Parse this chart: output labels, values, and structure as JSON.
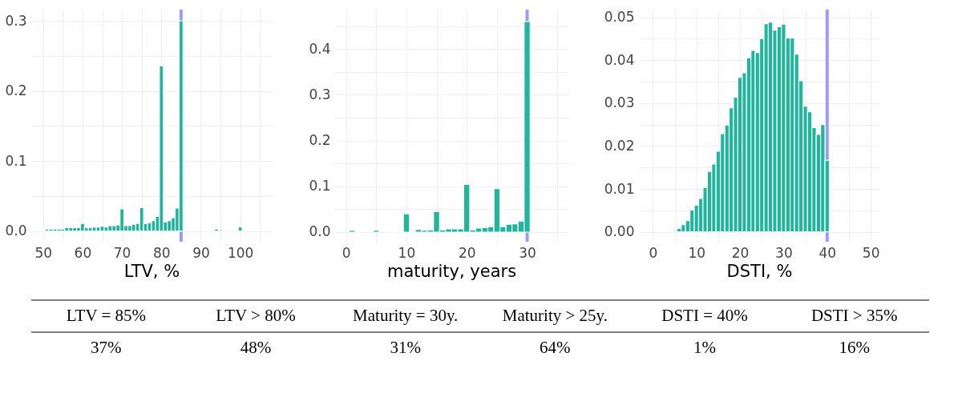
{
  "chart_data": [
    {
      "type": "histogram",
      "xlabel": "LTV, %",
      "color": "#1fb69c",
      "bins": [
        50.5,
        51.5,
        52.5,
        53.5,
        54.5,
        55.5,
        56.5,
        57.5,
        58.5,
        59.5,
        60.5,
        61.5,
        62.5,
        63.5,
        64.5,
        65.5,
        66.5,
        67.5,
        68.5,
        69.5,
        70.5,
        71.5,
        72.5,
        73.5,
        74.5,
        75.5,
        76.5,
        77.5,
        78.5,
        79.5,
        80.5,
        81.5,
        82.5,
        83.5,
        84.5,
        85.5,
        86.5,
        87.5,
        88.5,
        89.5,
        90.5,
        91.5,
        92.5,
        93.5,
        94.5,
        95.5,
        96.5,
        97.5,
        98.5,
        99.5,
        100.5
      ],
      "values": [
        0.003,
        0.003,
        0.003,
        0.003,
        0.003,
        0.005,
        0.005,
        0.005,
        0.005,
        0.011,
        0.005,
        0.005,
        0.006,
        0.006,
        0.007,
        0.006,
        0.008,
        0.008,
        0.009,
        0.032,
        0.008,
        0.008,
        0.01,
        0.011,
        0.034,
        0.011,
        0.012,
        0.015,
        0.021,
        0.236,
        0.013,
        0.015,
        0.019,
        0.033,
        0.3,
        0,
        0,
        0,
        0,
        0,
        0,
        0.001,
        0.001,
        0.003,
        0.002,
        0.001,
        0.001,
        0.001,
        0,
        0.006
      ],
      "xlim": [
        47,
        108
      ],
      "xticks": [
        50,
        {
          "value": 55,
          "label": null
        },
        60,
        {
          "value": 65,
          "label": null
        },
        70,
        {
          "value": 75,
          "label": null
        },
        80,
        {
          "value": 85,
          "label": null
        },
        90,
        {
          "value": 95,
          "label": null
        },
        100,
        {
          "value": 105,
          "label": null
        }
      ],
      "ylim": [
        -0.015,
        0.316
      ],
      "yticks": [
        {
          "value": 0,
          "label": "0.0"
        },
        {
          "value": 0.05,
          "label": null
        },
        {
          "value": 0.1,
          "label": "0.1"
        },
        {
          "value": 0.15,
          "label": null
        },
        {
          "value": 0.2,
          "label": "0.2"
        },
        {
          "value": 0.25,
          "label": null
        },
        {
          "value": 0.3,
          "label": "0.3"
        }
      ],
      "grid": true,
      "ref_lines": [
        {
          "axis": "x",
          "value": 85,
          "label": null,
          "color": "#9c9cf7"
        }
      ]
    },
    {
      "type": "histogram",
      "xlabel": "maturity, years",
      "color": "#1fb69c",
      "bins": [
        0.5,
        1.5,
        2.5,
        3.5,
        4.5,
        5.5,
        6.5,
        7.5,
        8.5,
        9.5,
        10.5,
        11.5,
        12.5,
        13.5,
        14.5,
        15.5,
        16.5,
        17.5,
        18.5,
        19.5,
        20.5,
        21.5,
        22.5,
        23.5,
        24.5,
        25.5,
        26.5,
        27.5,
        28.5,
        29.5,
        30.5
      ],
      "values": [
        0.004,
        0.002,
        0,
        0,
        0.004,
        0,
        0.002,
        0.002,
        0.001,
        0.04,
        0.002,
        0.006,
        0.004,
        0.005,
        0.045,
        0.005,
        0.007,
        0.007,
        0.007,
        0.104,
        0.005,
        0.009,
        0.01,
        0.012,
        0.095,
        0.012,
        0.017,
        0.018,
        0.024,
        0.46
      ],
      "xlim": [
        -1.8,
        36.7
      ],
      "xticks": [
        0,
        {
          "value": 5,
          "label": null
        },
        10,
        {
          "value": 15,
          "label": null
        },
        20,
        {
          "value": 25,
          "label": null
        },
        30,
        {
          "value": 35,
          "label": null
        }
      ],
      "ylim": [
        -0.021,
        0.486
      ],
      "yticks": [
        {
          "value": 0,
          "label": "0.0"
        },
        {
          "value": 0.05,
          "label": null
        },
        {
          "value": 0.1,
          "label": "0.1"
        },
        {
          "value": 0.15,
          "label": null
        },
        {
          "value": 0.2,
          "label": "0.2"
        },
        {
          "value": 0.25,
          "label": null
        },
        {
          "value": 0.3,
          "label": "0.3"
        },
        {
          "value": 0.35,
          "label": null
        },
        {
          "value": 0.4,
          "label": "0.4"
        },
        {
          "value": 0.45,
          "label": null
        }
      ],
      "grid": true,
      "ref_lines": [
        {
          "axis": "x",
          "value": 30,
          "label": null,
          "color": "#9c9cf7"
        }
      ]
    },
    {
      "type": "histogram",
      "xlabel": "DSTI, %",
      "color": "#1fb69c",
      "bins": [
        3.5,
        4.5,
        5.5,
        6.5,
        7.5,
        8.5,
        9.5,
        10.5,
        11.5,
        12.5,
        13.5,
        14.5,
        15.5,
        16.5,
        17.5,
        18.5,
        19.5,
        20.5,
        21.5,
        22.5,
        23.5,
        24.5,
        25.5,
        26.5,
        27.5,
        28.5,
        29.5,
        30.5,
        31.5,
        32.5,
        33.5,
        34.5,
        35.5,
        36.5,
        37.5,
        38.5,
        39.5,
        40.5
      ],
      "values": [
        0.0001,
        0.0003,
        0.0008,
        0.0017,
        0.0026,
        0.0051,
        0.0062,
        0.0078,
        0.0103,
        0.0141,
        0.0158,
        0.0188,
        0.0229,
        0.0249,
        0.0289,
        0.0314,
        0.036,
        0.0371,
        0.0406,
        0.0423,
        0.0418,
        0.045,
        0.0485,
        0.0489,
        0.047,
        0.0478,
        0.0484,
        0.0452,
        0.0452,
        0.0414,
        0.0352,
        0.0293,
        0.028,
        0.0243,
        0.0227,
        0.025,
        0.0167
      ],
      "xlim": [
        -3.2,
        52
      ],
      "xticks": [
        0,
        {
          "value": 5,
          "label": null
        },
        10,
        {
          "value": 15,
          "label": null
        },
        20,
        {
          "value": 25,
          "label": null
        },
        30,
        {
          "value": 35,
          "label": null
        },
        40,
        {
          "value": 45,
          "label": null
        },
        50
      ],
      "ylim": [
        -0.0023,
        0.0518
      ],
      "yticks": [
        {
          "value": 0,
          "label": "0.00"
        },
        {
          "value": 0.005,
          "label": null
        },
        {
          "value": 0.01,
          "label": "0.01"
        },
        {
          "value": 0.015,
          "label": null
        },
        {
          "value": 0.02,
          "label": "0.02"
        },
        {
          "value": 0.025,
          "label": null
        },
        {
          "value": 0.03,
          "label": "0.03"
        },
        {
          "value": 0.035,
          "label": null
        },
        {
          "value": 0.04,
          "label": "0.04"
        },
        {
          "value": 0.045,
          "label": null
        },
        {
          "value": 0.05,
          "label": "0.05"
        }
      ],
      "grid": true,
      "ref_lines": [
        {
          "axis": "x",
          "value": 40,
          "label": null,
          "color": "#9c9cf7"
        }
      ]
    },
    {
      "type": "other",
      "annotations": [
        "LTV = 85%",
        "LTV > 80%",
        "Maturity = 30y.",
        "Maturity > 25y.",
        "DSTI = 40%",
        "DSTI > 35%",
        "37%",
        "48%",
        "31%",
        "64%",
        "1%",
        "16%"
      ]
    }
  ]
}
